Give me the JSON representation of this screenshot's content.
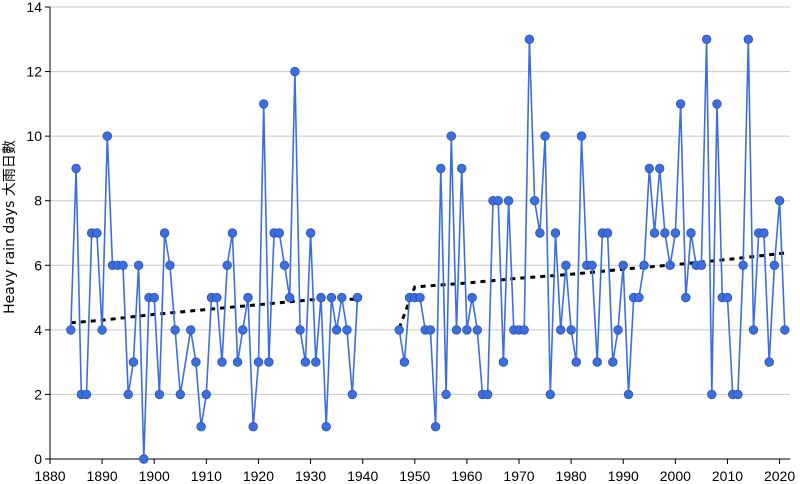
{
  "chart_data": {
    "type": "line",
    "title": "",
    "xlabel": "",
    "ylabel": "Heavy rain days 大雨日數",
    "xlim": [
      1880,
      2022
    ],
    "ylim": [
      0,
      14
    ],
    "xticks": [
      1880,
      1890,
      1900,
      1910,
      1920,
      1930,
      1940,
      1950,
      1960,
      1970,
      1980,
      1990,
      2000,
      2010,
      2020
    ],
    "yticks": [
      0,
      2,
      4,
      6,
      8,
      10,
      12,
      14
    ],
    "grid": "horizontal",
    "colors": {
      "line": "#3b6fe0",
      "marker": "#3b6fe0",
      "marker_edge": "#2a4fb0",
      "trend": "#000000",
      "grid": "#c8c8c8",
      "axis": "#000000"
    },
    "series": [
      {
        "role": "annual",
        "points": [
          [
            1884,
            4
          ],
          [
            1885,
            9
          ],
          [
            1886,
            2
          ],
          [
            1887,
            2
          ],
          [
            1888,
            7
          ],
          [
            1889,
            7
          ],
          [
            1890,
            4
          ],
          [
            1891,
            10
          ],
          [
            1892,
            6
          ],
          [
            1893,
            6
          ],
          [
            1894,
            6
          ],
          [
            1895,
            2
          ],
          [
            1896,
            3
          ],
          [
            1897,
            6
          ],
          [
            1898,
            0
          ],
          [
            1899,
            5
          ],
          [
            1900,
            5
          ],
          [
            1901,
            2
          ],
          [
            1902,
            7
          ],
          [
            1903,
            6
          ],
          [
            1904,
            4
          ],
          [
            1905,
            2
          ],
          [
            1907,
            4
          ],
          [
            1908,
            3
          ],
          [
            1909,
            1
          ],
          [
            1910,
            2
          ],
          [
            1911,
            5
          ],
          [
            1912,
            5
          ],
          [
            1913,
            3
          ],
          [
            1914,
            6
          ],
          [
            1915,
            7
          ],
          [
            1916,
            3
          ],
          [
            1917,
            4
          ],
          [
            1918,
            5
          ],
          [
            1919,
            1
          ],
          [
            1920,
            3
          ],
          [
            1921,
            11
          ],
          [
            1922,
            3
          ],
          [
            1923,
            7
          ],
          [
            1924,
            7
          ],
          [
            1925,
            6
          ],
          [
            1926,
            5
          ],
          [
            1927,
            12
          ],
          [
            1928,
            4
          ],
          [
            1929,
            3
          ],
          [
            1930,
            7
          ],
          [
            1931,
            3
          ],
          [
            1932,
            5
          ],
          [
            1933,
            1
          ],
          [
            1934,
            5
          ],
          [
            1935,
            4
          ],
          [
            1936,
            5
          ],
          [
            1937,
            4
          ],
          [
            1938,
            2
          ],
          [
            1939,
            5
          ],
          [
            1947,
            4
          ],
          [
            1948,
            3
          ],
          [
            1949,
            5
          ],
          [
            1950,
            5
          ],
          [
            1951,
            5
          ],
          [
            1952,
            4
          ],
          [
            1953,
            4
          ],
          [
            1954,
            1
          ],
          [
            1955,
            9
          ],
          [
            1956,
            2
          ],
          [
            1957,
            10
          ],
          [
            1958,
            4
          ],
          [
            1959,
            9
          ],
          [
            1960,
            4
          ],
          [
            1961,
            5
          ],
          [
            1962,
            4
          ],
          [
            1963,
            2
          ],
          [
            1964,
            2
          ],
          [
            1965,
            8
          ],
          [
            1966,
            8
          ],
          [
            1967,
            3
          ],
          [
            1968,
            8
          ],
          [
            1969,
            4
          ],
          [
            1970,
            4
          ],
          [
            1971,
            4
          ],
          [
            1972,
            13
          ],
          [
            1973,
            8
          ],
          [
            1974,
            7
          ],
          [
            1975,
            10
          ],
          [
            1976,
            2
          ],
          [
            1977,
            7
          ],
          [
            1978,
            4
          ],
          [
            1979,
            6
          ],
          [
            1980,
            4
          ],
          [
            1981,
            3
          ],
          [
            1982,
            10
          ],
          [
            1983,
            6
          ],
          [
            1984,
            6
          ],
          [
            1985,
            3
          ],
          [
            1986,
            7
          ],
          [
            1987,
            7
          ],
          [
            1988,
            3
          ],
          [
            1989,
            4
          ],
          [
            1990,
            6
          ],
          [
            1991,
            2
          ],
          [
            1992,
            5
          ],
          [
            1993,
            5
          ],
          [
            1994,
            6
          ],
          [
            1995,
            9
          ],
          [
            1996,
            7
          ],
          [
            1997,
            9
          ],
          [
            1998,
            7
          ],
          [
            1999,
            6
          ],
          [
            2000,
            7
          ],
          [
            2001,
            11
          ],
          [
            2002,
            5
          ],
          [
            2003,
            7
          ],
          [
            2004,
            6
          ],
          [
            2005,
            6
          ],
          [
            2006,
            13
          ],
          [
            2007,
            2
          ],
          [
            2008,
            11
          ],
          [
            2009,
            5
          ],
          [
            2010,
            5
          ],
          [
            2011,
            2
          ],
          [
            2012,
            2
          ],
          [
            2013,
            6
          ],
          [
            2014,
            13
          ],
          [
            2015,
            4
          ],
          [
            2016,
            7
          ],
          [
            2017,
            7
          ],
          [
            2018,
            3
          ],
          [
            2019,
            6
          ],
          [
            2020,
            8
          ],
          [
            2021,
            4
          ]
        ]
      },
      {
        "role": "trend",
        "points": [
          [
            1884,
            4.22
          ],
          [
            1890,
            4.3
          ],
          [
            1900,
            4.48
          ],
          [
            1910,
            4.63
          ],
          [
            1920,
            4.78
          ],
          [
            1930,
            4.93
          ],
          [
            1939,
            4.95
          ],
          [
            1947,
            4.05
          ],
          [
            1950,
            5.33
          ],
          [
            1960,
            5.45
          ],
          [
            1970,
            5.6
          ],
          [
            1980,
            5.72
          ],
          [
            1990,
            5.88
          ],
          [
            2000,
            6.02
          ],
          [
            2010,
            6.18
          ],
          [
            2021,
            6.38
          ]
        ]
      }
    ]
  }
}
